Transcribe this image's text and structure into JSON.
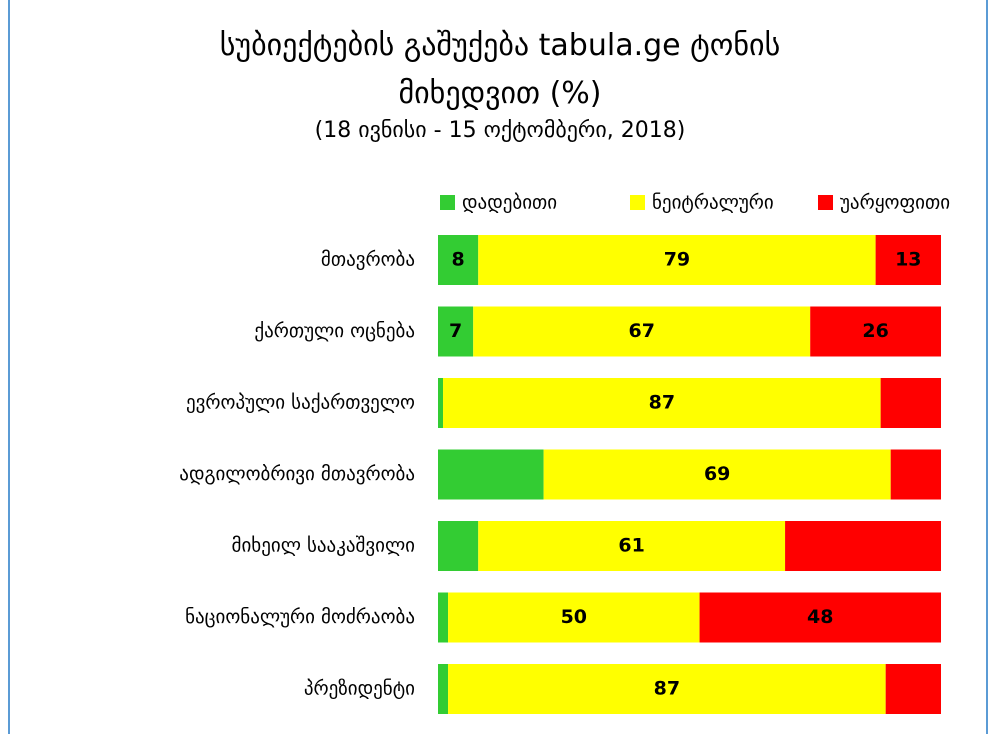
{
  "chart_data": {
    "type": "stacked-barh",
    "title": "სუბიექტების გაშუქება tabula.ge ტონის მიხედვით (%)",
    "subtitle": "(18 ივნისი - 15 ოქტომბერი, 2018)",
    "categories": [
      "მთავრობა",
      "ქართული ოცნება",
      "ევროპული საქართველო",
      "ადგილობრივი მთავრობა",
      "მიხეილ სააკაშვილი",
      "ნაციონალური მოძრაობა",
      "პრეზიდენტი"
    ],
    "series": [
      {
        "name": "დადებითი",
        "color": "#33cc33",
        "values": [
          8,
          7,
          1,
          21,
          8,
          2,
          2
        ],
        "value_labels": [
          "8",
          "7",
          null,
          null,
          null,
          null,
          null
        ]
      },
      {
        "name": "ნეიტრალური",
        "color": "#ffff00",
        "values": [
          79,
          67,
          87,
          69,
          61,
          50,
          87
        ],
        "value_labels": [
          "79",
          "67",
          "87",
          "69",
          "61",
          "50",
          "87"
        ]
      },
      {
        "name": "უარყოფითი",
        "color": "#ff0000",
        "values": [
          13,
          26,
          12,
          10,
          31,
          48,
          11
        ],
        "value_labels": [
          "13",
          "26",
          null,
          null,
          null,
          "48",
          null
        ]
      }
    ],
    "xlim": [
      0,
      100
    ],
    "legend": "top-right"
  }
}
